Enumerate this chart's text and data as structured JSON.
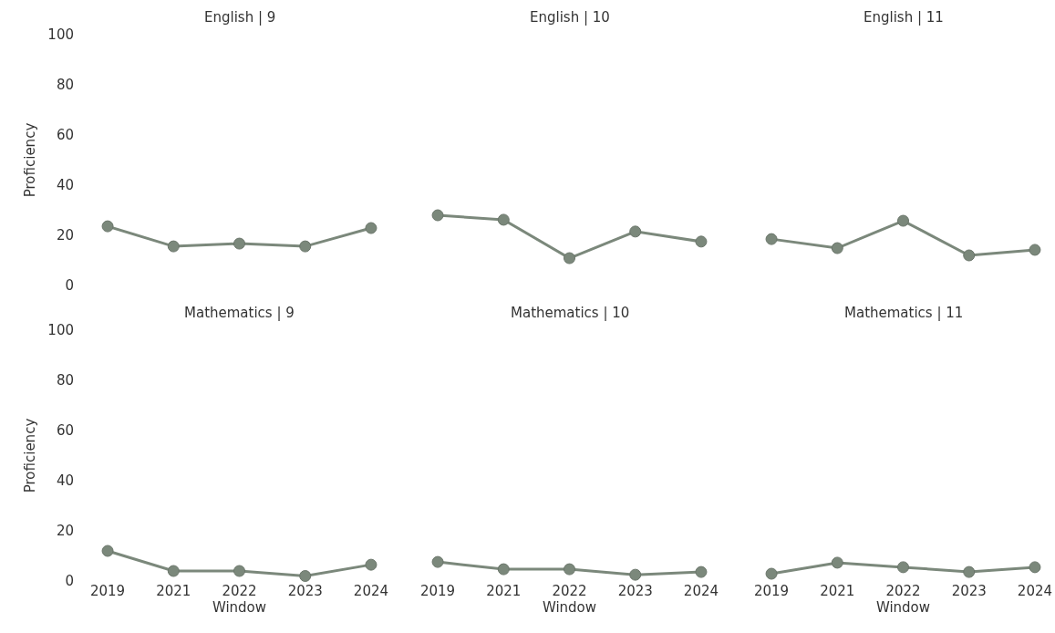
{
  "chart_data": [
    {
      "type": "line",
      "title": "English | 9",
      "ylabel": "Proficiency",
      "categories": [
        "2019",
        "2021",
        "2022",
        "2023",
        "2024"
      ],
      "series": [
        {
          "color": "#7b887b",
          "values": [
            23.6,
            15.6,
            16.7,
            15.6,
            22.9
          ]
        }
      ],
      "ylim": [
        0,
        100
      ],
      "yticks": [
        0,
        20,
        40,
        60,
        80,
        100
      ],
      "marker": "circle",
      "tick_labels": "y"
    },
    {
      "type": "line",
      "title": "English | 10",
      "categories": [
        "2019",
        "2021",
        "2022",
        "2023",
        "2024"
      ],
      "series": [
        {
          "color": "#7b887b",
          "values": [
            28,
            26.2,
            10.9,
            21.5,
            17.5
          ]
        }
      ],
      "ylim": [
        0,
        100
      ],
      "yticks": [
        0,
        20,
        40,
        60,
        80,
        100
      ],
      "marker": "circle",
      "tick_labels": false
    },
    {
      "type": "line",
      "title": "English | 11",
      "categories": [
        "2019",
        "2021",
        "2022",
        "2023",
        "2024"
      ],
      "series": [
        {
          "color": "#7b887b",
          "values": [
            18.5,
            14.9,
            25.8,
            12,
            14.2
          ]
        }
      ],
      "ylim": [
        0,
        100
      ],
      "yticks": [
        0,
        20,
        40,
        60,
        80,
        100
      ],
      "marker": "circle",
      "tick_labels": false
    },
    {
      "type": "line",
      "title": "Mathematics | 9",
      "xlabel": "Window",
      "ylabel": "Proficiency",
      "categories": [
        "2019",
        "2021",
        "2022",
        "2023",
        "2024"
      ],
      "series": [
        {
          "color": "#7b887b",
          "values": [
            12,
            4,
            4,
            2,
            6.5
          ]
        }
      ],
      "ylim": [
        0,
        100
      ],
      "yticks": [
        0,
        20,
        40,
        60,
        80,
        100
      ],
      "marker": "circle"
    },
    {
      "type": "line",
      "title": "Mathematics | 10",
      "xlabel": "Window",
      "categories": [
        "2019",
        "2021",
        "2022",
        "2023",
        "2024"
      ],
      "series": [
        {
          "color": "#7b887b",
          "values": [
            7.6,
            4.7,
            4.7,
            2.5,
            3.6
          ]
        }
      ],
      "ylim": [
        0,
        100
      ],
      "yticks": [
        0,
        20,
        40,
        60,
        80,
        100
      ],
      "marker": "circle",
      "tick_labels": "x"
    },
    {
      "type": "line",
      "title": "Mathematics | 11",
      "xlabel": "Window",
      "categories": [
        "2019",
        "2021",
        "2022",
        "2023",
        "2024"
      ],
      "series": [
        {
          "color": "#7b887b",
          "values": [
            2.9,
            7.3,
            5.5,
            3.6,
            5.5
          ]
        }
      ],
      "ylim": [
        0,
        100
      ],
      "yticks": [
        0,
        20,
        40,
        60,
        80,
        100
      ],
      "marker": "circle",
      "tick_labels": "x"
    }
  ]
}
